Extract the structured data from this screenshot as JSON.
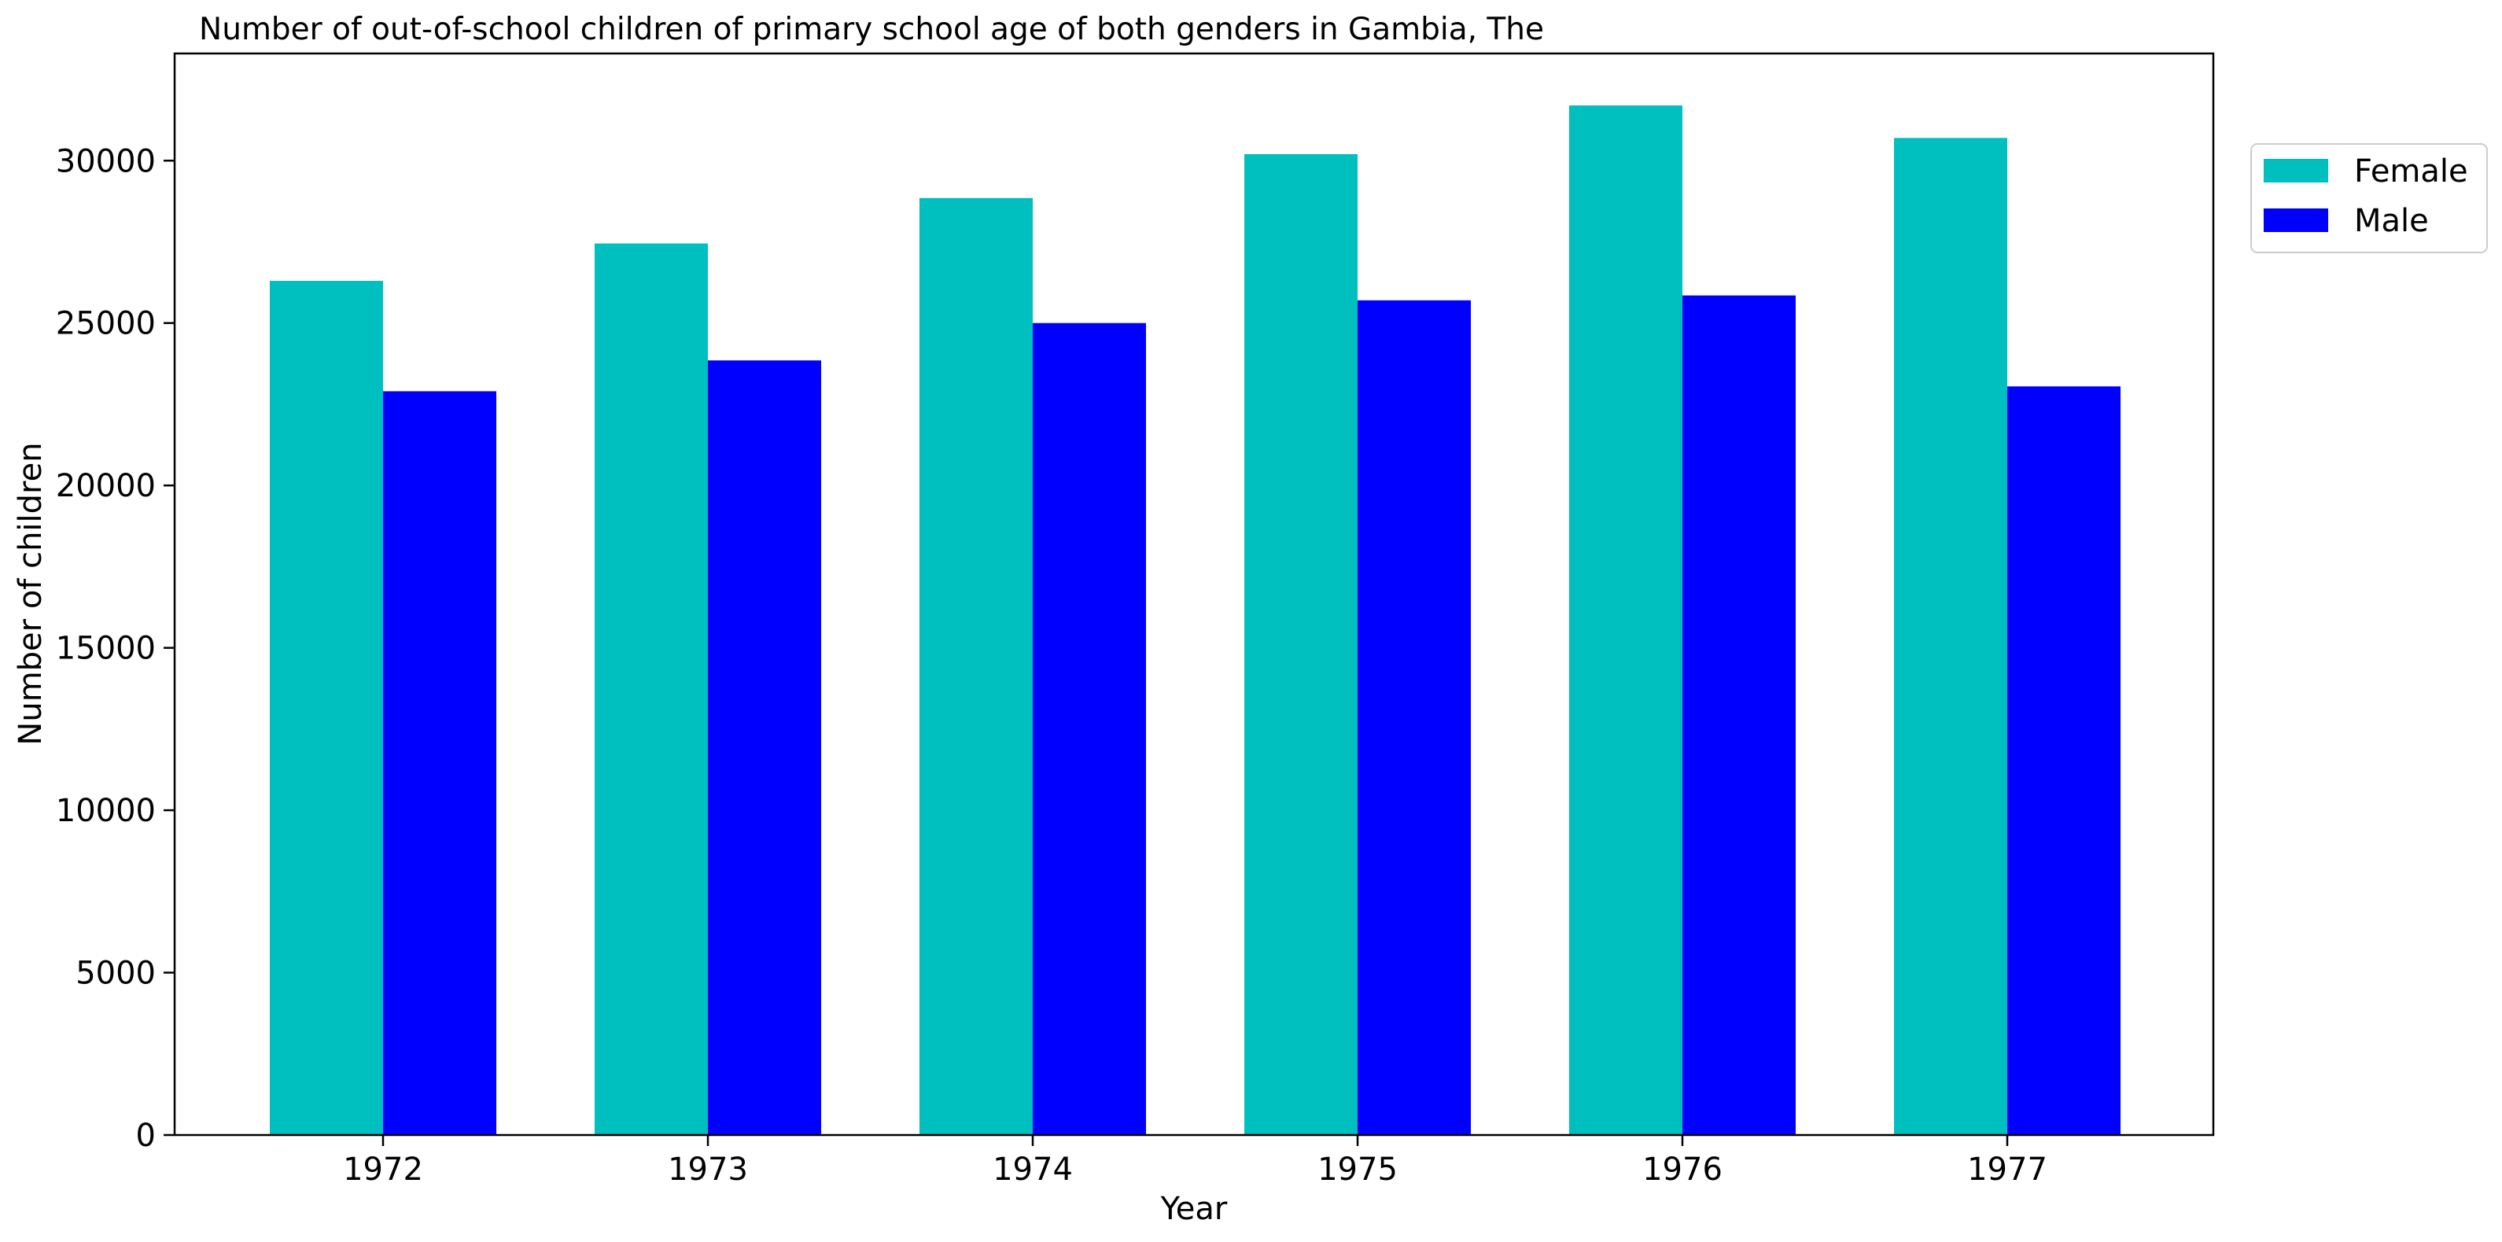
{
  "chart_data": {
    "type": "bar",
    "title": "Number of out-of-school children of primary school age of both genders in Gambia, The",
    "xlabel": "Year",
    "ylabel": "Number of children",
    "categories": [
      "1972",
      "1973",
      "1974",
      "1975",
      "1976",
      "1977"
    ],
    "series": [
      {
        "name": "Female",
        "color": "#00BFBF",
        "values": [
          26300,
          27450,
          28850,
          30200,
          31700,
          30700
        ]
      },
      {
        "name": "Male",
        "color": "#0000FF",
        "values": [
          22900,
          23850,
          25000,
          25700,
          25850,
          23050
        ]
      }
    ],
    "ylim": [
      0,
      33300
    ],
    "yticks": [
      0,
      5000,
      10000,
      15000,
      20000,
      25000,
      30000
    ],
    "grid": false,
    "legend_position": "upper-right-outside"
  }
}
